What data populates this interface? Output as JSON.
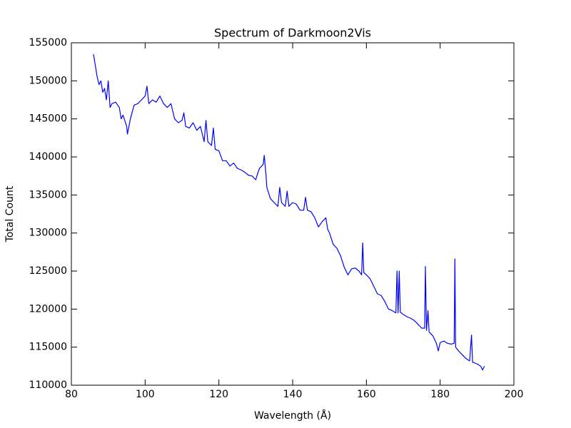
{
  "chart_data": {
    "type": "line",
    "title": "Spectrum of Darkmoon2Vis",
    "x_label": "Wavelength (Å)",
    "y_label": "Total Count",
    "x": [
      86,
      86.5,
      87,
      87.5,
      88,
      88.5,
      89,
      89.5,
      90,
      90.5,
      91,
      92,
      93,
      93.5,
      94,
      95,
      95.2,
      96,
      97,
      98,
      99,
      100,
      100.5,
      101,
      102,
      103,
      104,
      105,
      106,
      107,
      108,
      109,
      110,
      110.5,
      111,
      112,
      113,
      114,
      115,
      116,
      116.5,
      117,
      118,
      118.5,
      119,
      120,
      121,
      122,
      123,
      124,
      125,
      126,
      127,
      128,
      129,
      130,
      130.5,
      131,
      132,
      132.3,
      132.8,
      133,
      134,
      135,
      136,
      136.5,
      137,
      138,
      138.5,
      139,
      140,
      141,
      142,
      143,
      143.5,
      144,
      145,
      146,
      147,
      148,
      149,
      149.5,
      150,
      151,
      152,
      153,
      154,
      155,
      156,
      157,
      158,
      158.7,
      159,
      159.3,
      160,
      161,
      162,
      163,
      164,
      165,
      166,
      167,
      168,
      168.3,
      168.6,
      168.9,
      169.2,
      170,
      171,
      172,
      173,
      174,
      175,
      175.8,
      176,
      176.3,
      176.7,
      177,
      178,
      179,
      179.5,
      180,
      181,
      182,
      183,
      183.8,
      184,
      184.2,
      185,
      186,
      187,
      188,
      188.5,
      188.8,
      189,
      190,
      191,
      191.5,
      192
    ],
    "series": [
      {
        "name": "Darkmoon2Vis",
        "color": "#0000ff",
        "values": [
          153500,
          152000,
          150500,
          149500,
          150000,
          148500,
          149000,
          147500,
          150000,
          146500,
          147000,
          147200,
          146500,
          145000,
          145500,
          144000,
          143000,
          145000,
          146800,
          147000,
          147500,
          148000,
          149300,
          147000,
          147500,
          147200,
          148000,
          147000,
          146500,
          147000,
          145000,
          144500,
          144800,
          145800,
          144000,
          143800,
          144500,
          143500,
          144000,
          142000,
          144800,
          142000,
          141500,
          143800,
          141000,
          140800,
          139500,
          139500,
          138800,
          139200,
          138500,
          138300,
          138000,
          137600,
          137500,
          137000,
          137800,
          138500,
          139000,
          140200,
          137500,
          136000,
          134500,
          134000,
          133500,
          136000,
          134000,
          133500,
          135500,
          133500,
          134000,
          133800,
          133000,
          133000,
          134700,
          133000,
          132800,
          132000,
          130800,
          131500,
          132000,
          130500,
          130000,
          128500,
          128000,
          127000,
          125500,
          124500,
          125300,
          125400,
          125000,
          124500,
          128700,
          124800,
          124500,
          124000,
          123000,
          122000,
          121800,
          121000,
          120000,
          119800,
          119500,
          125000,
          119500,
          125000,
          119600,
          119300,
          119000,
          118800,
          118500,
          118000,
          117500,
          117500,
          125600,
          117200,
          119800,
          117000,
          116500,
          115500,
          114500,
          115600,
          115800,
          115500,
          115400,
          115500,
          126600,
          115000,
          114500,
          114000,
          113500,
          113200,
          116600,
          113000,
          113000,
          112800,
          112500,
          112000,
          112500
        ]
      }
    ],
    "xlim": [
      80,
      200
    ],
    "xticks": [
      80,
      100,
      120,
      140,
      160,
      180,
      200
    ],
    "ylim": [
      110000,
      155000
    ],
    "yticks": [
      110000,
      115000,
      120000,
      125000,
      130000,
      135000,
      140000,
      145000,
      150000,
      155000
    ]
  }
}
